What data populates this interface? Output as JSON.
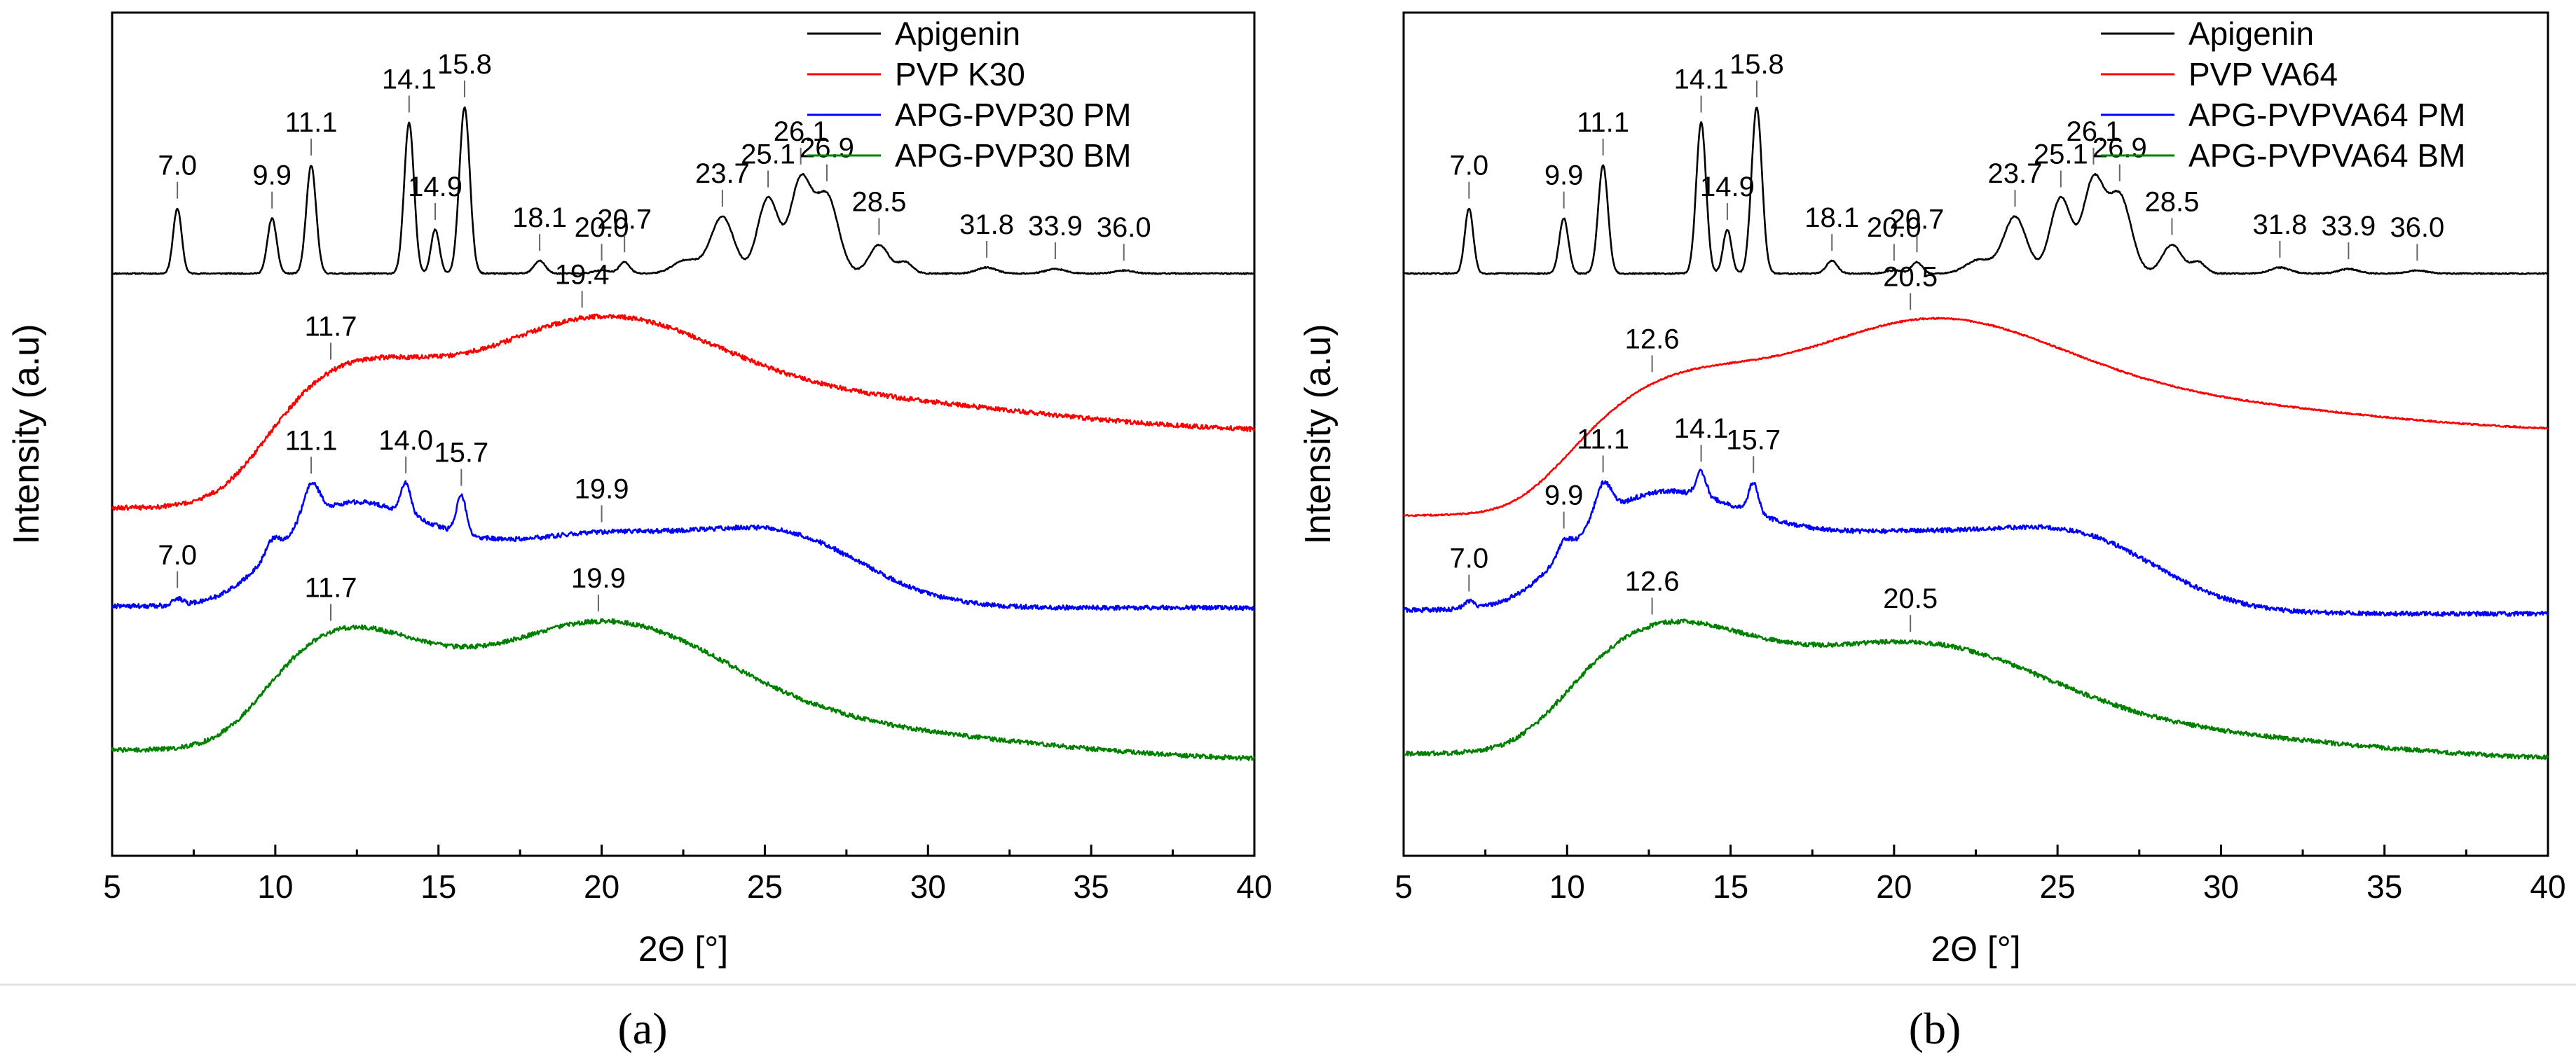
{
  "chart_data": [
    {
      "type": "line",
      "panel_label": "a",
      "xlabel": "2Θ [°]",
      "ylabel": "Intensity (a.u)",
      "xlim": [
        5,
        40
      ],
      "x_ticks": [
        "5",
        "10",
        "15",
        "20",
        "25",
        "30",
        "35",
        "40"
      ],
      "y_scale": "arbitrary units, stacked offsets",
      "legend": {
        "location": "top-right"
      },
      "series": [
        {
          "name": "Apigenin",
          "color": "#000000",
          "baseline": 1.0,
          "end_level": 1.0,
          "noise": 0.008,
          "peaks": [
            {
              "x": 7.0,
              "h": 0.86,
              "w": 0.13,
              "label": "7.0"
            },
            {
              "x": 9.9,
              "h": 0.73,
              "w": 0.14,
              "label": "9.9"
            },
            {
              "x": 11.1,
              "h": 1.43,
              "w": 0.15,
              "label": "11.1"
            },
            {
              "x": 14.1,
              "h": 2.0,
              "w": 0.15,
              "label": "14.1"
            },
            {
              "x": 14.9,
              "h": 0.58,
              "w": 0.13,
              "label": "14.9"
            },
            {
              "x": 15.8,
              "h": 2.2,
              "w": 0.16,
              "label": "15.8"
            },
            {
              "x": 18.1,
              "h": 0.17,
              "w": 0.17,
              "label": "18.1"
            },
            {
              "x": 20.0,
              "h": 0.04,
              "w": 0.25,
              "label": "20.0"
            },
            {
              "x": 20.7,
              "h": 0.15,
              "w": 0.16,
              "label": "20.7"
            },
            {
              "x": 22.6,
              "h": 0.18,
              "w": 0.4
            },
            {
              "x": 23.7,
              "h": 0.75,
              "w": 0.35,
              "label": "23.7"
            },
            {
              "x": 25.1,
              "h": 1.0,
              "w": 0.32,
              "label": "25.1"
            },
            {
              "x": 26.1,
              "h": 1.22,
              "w": 0.32,
              "label": "26.1"
            },
            {
              "x": 26.9,
              "h": 1.02,
              "w": 0.35,
              "label": "26.9"
            },
            {
              "x": 28.5,
              "h": 0.38,
              "w": 0.3,
              "label": "28.5"
            },
            {
              "x": 29.3,
              "h": 0.15,
              "w": 0.22
            },
            {
              "x": 31.8,
              "h": 0.08,
              "w": 0.3,
              "label": "31.8"
            },
            {
              "x": 33.9,
              "h": 0.06,
              "w": 0.3,
              "label": "33.9"
            },
            {
              "x": 36.0,
              "h": 0.04,
              "w": 0.3,
              "label": "36.0"
            }
          ]
        },
        {
          "name": "PVP K30",
          "color": "#ff0000",
          "baseline": -2.1,
          "end_level": -1.1,
          "noise": 0.03,
          "halos": [
            {
              "x": 11.7,
              "h": 1.45,
              "w": 2.8,
              "label": "11.7"
            },
            {
              "x": 19.4,
              "h": 1.55,
              "w": 3.8,
              "label": "19.4"
            },
            {
              "x": 27.0,
              "h": 0.45,
              "w": 6.0
            }
          ]
        },
        {
          "name": "APG-PVP30 PM",
          "color": "#0000ff",
          "baseline": -3.4,
          "end_level": -3.42,
          "noise": 0.03,
          "halos": [
            {
              "x": 12.0,
              "h": 1.3,
              "w": 2.6
            },
            {
              "x": 20.0,
              "h": 0.95,
              "w": 3.8,
              "label": "19.9"
            },
            {
              "x": 25.9,
              "h": 0.7,
              "w": 2.4
            }
          ],
          "peaks": [
            {
              "x": 7.0,
              "h": 0.09,
              "w": 0.15,
              "label": "7.0"
            },
            {
              "x": 9.9,
              "h": 0.18,
              "w": 0.2
            },
            {
              "x": 11.1,
              "h": 0.45,
              "w": 0.25,
              "label": "11.1"
            },
            {
              "x": 14.0,
              "h": 0.4,
              "w": 0.15,
              "label": "14.0"
            },
            {
              "x": 15.7,
              "h": 0.5,
              "w": 0.15,
              "label": "15.7"
            }
          ]
        },
        {
          "name": "APG-PVP30 BM",
          "color": "#008000",
          "baseline": -5.3,
          "end_level": -5.45,
          "noise": 0.03,
          "halos": [
            {
              "x": 11.7,
              "h": 1.5,
              "w": 2.7,
              "label": "11.7"
            },
            {
              "x": 19.9,
              "h": 1.6,
              "w": 3.8,
              "label": "19.9"
            },
            {
              "x": 27.0,
              "h": 0.4,
              "w": 6.0
            }
          ]
        }
      ]
    },
    {
      "type": "line",
      "panel_label": "b",
      "xlabel": "2Θ [°]",
      "ylabel": "Intensity (a.u)",
      "xlim": [
        5,
        40
      ],
      "x_ticks": [
        "5",
        "10",
        "15",
        "20",
        "25",
        "30",
        "35",
        "40"
      ],
      "y_scale": "arbitrary units, stacked offsets",
      "legend": {
        "location": "top-right"
      },
      "series": [
        {
          "name": "Apigenin",
          "color": "#000000",
          "baseline": 1.0,
          "end_level": 1.0,
          "noise": 0.008,
          "peaks": [
            {
              "x": 7.0,
              "h": 0.86,
              "w": 0.13,
              "label": "7.0"
            },
            {
              "x": 9.9,
              "h": 0.73,
              "w": 0.14,
              "label": "9.9"
            },
            {
              "x": 11.1,
              "h": 1.43,
              "w": 0.15,
              "label": "11.1"
            },
            {
              "x": 14.1,
              "h": 2.0,
              "w": 0.15,
              "label": "14.1"
            },
            {
              "x": 14.9,
              "h": 0.58,
              "w": 0.13,
              "label": "14.9"
            },
            {
              "x": 15.8,
              "h": 2.2,
              "w": 0.16,
              "label": "15.8"
            },
            {
              "x": 18.1,
              "h": 0.17,
              "w": 0.17,
              "label": "18.1"
            },
            {
              "x": 20.0,
              "h": 0.04,
              "w": 0.25,
              "label": "20.0"
            },
            {
              "x": 20.7,
              "h": 0.15,
              "w": 0.16,
              "label": "20.7"
            },
            {
              "x": 22.6,
              "h": 0.18,
              "w": 0.4
            },
            {
              "x": 23.7,
              "h": 0.75,
              "w": 0.35,
              "label": "23.7"
            },
            {
              "x": 25.1,
              "h": 1.0,
              "w": 0.32,
              "label": "25.1"
            },
            {
              "x": 26.1,
              "h": 1.22,
              "w": 0.32,
              "label": "26.1"
            },
            {
              "x": 26.9,
              "h": 1.02,
              "w": 0.35,
              "label": "26.9"
            },
            {
              "x": 28.5,
              "h": 0.38,
              "w": 0.3,
              "label": "28.5"
            },
            {
              "x": 29.3,
              "h": 0.15,
              "w": 0.22
            },
            {
              "x": 31.8,
              "h": 0.08,
              "w": 0.3,
              "label": "31.8"
            },
            {
              "x": 33.9,
              "h": 0.06,
              "w": 0.3,
              "label": "33.9"
            },
            {
              "x": 36.0,
              "h": 0.04,
              "w": 0.3,
              "label": "36.0"
            }
          ]
        },
        {
          "name": "PVP VA64",
          "color": "#ff0000",
          "baseline": -2.2,
          "end_level": -1.1,
          "noise": 0.01,
          "halos": [
            {
              "x": 12.6,
              "h": 1.2,
              "w": 3.0,
              "label": "12.6"
            },
            {
              "x": 20.5,
              "h": 1.5,
              "w": 4.2,
              "label": "20.5"
            },
            {
              "x": 28.0,
              "h": 0.4,
              "w": 6.0
            }
          ]
        },
        {
          "name": "APG-PVPVA64 PM",
          "color": "#0000ff",
          "baseline": -3.45,
          "end_level": -3.5,
          "noise": 0.03,
          "halos": [
            {
              "x": 12.5,
              "h": 1.45,
              "w": 3.0
            },
            {
              "x": 20.5,
              "h": 1.0,
              "w": 4.0
            },
            {
              "x": 26.0,
              "h": 0.65,
              "w": 2.4
            }
          ],
          "peaks": [
            {
              "x": 7.0,
              "h": 0.09,
              "w": 0.15,
              "label": "7.0"
            },
            {
              "x": 9.9,
              "h": 0.18,
              "w": 0.2,
              "label": "9.9"
            },
            {
              "x": 11.1,
              "h": 0.45,
              "w": 0.25,
              "label": "11.1"
            },
            {
              "x": 14.1,
              "h": 0.32,
              "w": 0.15,
              "label": "14.1"
            },
            {
              "x": 15.7,
              "h": 0.4,
              "w": 0.15,
              "label": "15.7"
            }
          ]
        },
        {
          "name": "APG-PVPVA64 BM",
          "color": "#008000",
          "baseline": -5.35,
          "end_level": -5.45,
          "noise": 0.03,
          "halos": [
            {
              "x": 12.6,
              "h": 1.55,
              "w": 3.0,
              "label": "12.6"
            },
            {
              "x": 20.5,
              "h": 1.35,
              "w": 4.0,
              "label": "20.5"
            },
            {
              "x": 28.0,
              "h": 0.35,
              "w": 6.0
            }
          ]
        }
      ]
    }
  ],
  "captions": [
    "(a)",
    "(b)"
  ]
}
